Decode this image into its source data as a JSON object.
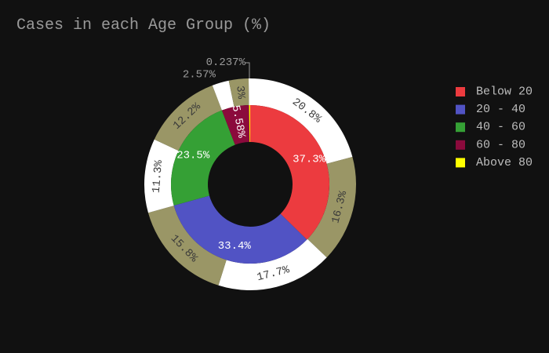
{
  "chart_data": {
    "type": "pie",
    "title": "Cases in each Age Group (%)",
    "inner": {
      "categories": [
        "Below 20",
        "20 - 40",
        "40 - 60",
        "60 - 80",
        "Above 80"
      ],
      "values": [
        37.3,
        33.4,
        23.5,
        5.58,
        0.237
      ],
      "labels": [
        "37.3%",
        "33.4%",
        "23.5%",
        "5.58%",
        ""
      ],
      "colors": [
        "#ec3b3f",
        "#5153c4",
        "#35a035",
        "#8b0a3c",
        "#ffff00"
      ]
    },
    "outer": {
      "values": [
        20.8,
        16.3,
        17.7,
        15.8,
        11.3,
        12.2,
        2.57,
        3,
        0.237
      ],
      "labels": [
        "20.8%",
        "16.3%",
        "17.7%",
        "15.8%",
        "11.3%",
        "12.2%",
        "2.57%",
        "3%",
        "0.237%"
      ],
      "colors": [
        "#ffffff",
        "#9a9666"
      ]
    },
    "legend": {
      "position": "right",
      "entries": [
        "Below 20",
        "20 - 40",
        "40 - 60",
        "60 - 80",
        "Above 80"
      ]
    }
  }
}
